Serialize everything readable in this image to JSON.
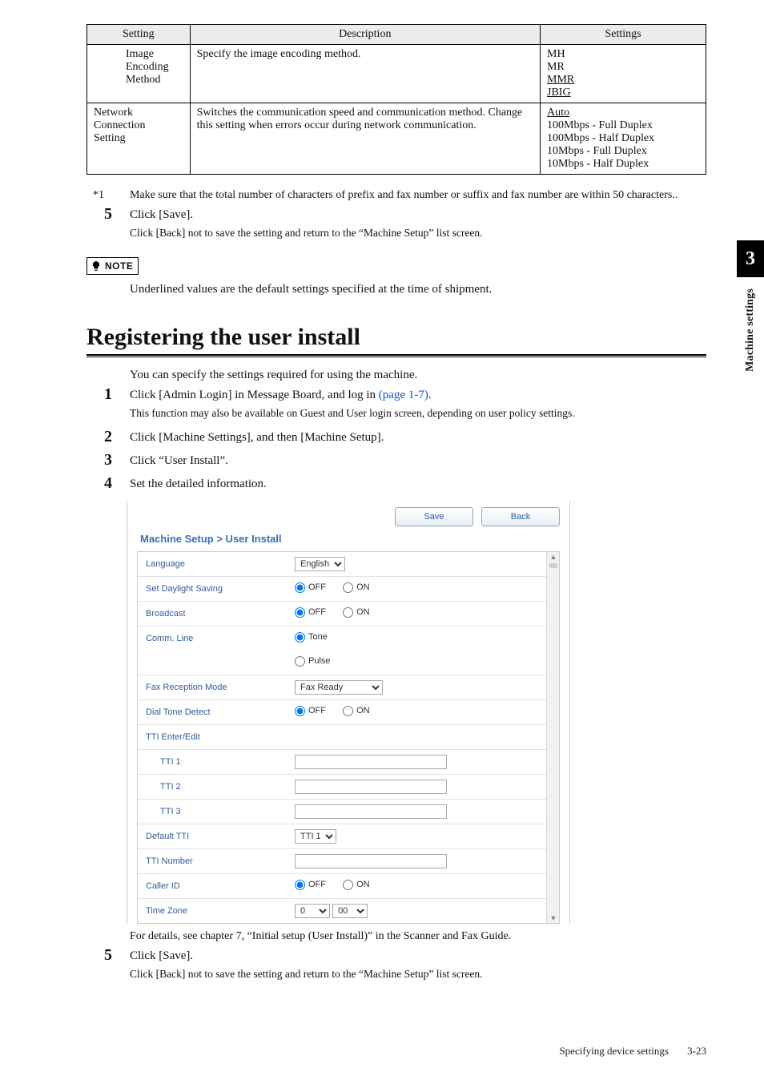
{
  "sideTab": {
    "chapterNum": "3",
    "chapterLabel": "Machine settings"
  },
  "table": {
    "headers": {
      "setting": "Setting",
      "description": "Description",
      "settings": "Settings"
    },
    "rows": [
      {
        "indented": true,
        "setting": "Image\nEncoding\nMethod",
        "description": "Specify the image encoding method.",
        "options": [
          {
            "text": "MH",
            "underline": false
          },
          {
            "text": "MR",
            "underline": false
          },
          {
            "text": "MMR",
            "underline": true
          },
          {
            "text": "JBIG",
            "underline": true
          }
        ]
      },
      {
        "indented": false,
        "setting": "Network\nConnection\nSetting",
        "description": "Switches the communication speed and communication method. Change this setting when errors occur during network communication.",
        "options": [
          {
            "text": "Auto",
            "underline": true
          },
          {
            "text": "100Mbps - Full Duplex",
            "underline": false
          },
          {
            "text": "100Mbps - Half Duplex",
            "underline": false
          },
          {
            "text": "10Mbps - Full Duplex",
            "underline": false
          },
          {
            "text": "10Mbps - Half Duplex",
            "underline": false
          }
        ]
      }
    ]
  },
  "footnote": {
    "mark": "*1",
    "text": "Make sure that the total number of characters of prefix and fax number or suffix and fax number are within 50 characters.."
  },
  "stepsA": {
    "5": {
      "body": "Click [Save].",
      "sub": "Click [Back] not to save the setting and return to the “Machine Setup” list screen."
    }
  },
  "note": {
    "label": "NOTE",
    "text": "Underlined values are the default settings specified at the time of shipment."
  },
  "sectionTitle": "Registering the user install",
  "sectionIntro": "You can specify the settings required for using the machine.",
  "stepsB": {
    "1": {
      "body_pre": "Click [Admin Login] in Message Board, and log in ",
      "body_link": "(page 1-7)",
      "body_post": ".",
      "sub": "This function may also be available on Guest and User login screen, depending on user policy settings."
    },
    "2": {
      "body": "Click [Machine Settings], and then [Machine Setup]."
    },
    "3": {
      "body": "Click “User Install”."
    },
    "4": {
      "body": "Set the detailed information."
    },
    "5": {
      "body": "Click [Save].",
      "sub": "Click [Back] not to save the setting and return to the “Machine Setup” list screen."
    }
  },
  "shot": {
    "buttons": {
      "save": "Save",
      "back": "Back"
    },
    "title": "Machine Setup > User Install",
    "rows": {
      "language": {
        "label": "Language",
        "value": "English"
      },
      "daylight": {
        "label": "Set Daylight Saving",
        "off": "OFF",
        "on": "ON"
      },
      "broadcast": {
        "label": "Broadcast",
        "off": "OFF",
        "on": "ON"
      },
      "commLine": {
        "label": "Comm. Line",
        "tone": "Tone",
        "pulse": "Pulse"
      },
      "faxMode": {
        "label": "Fax Reception Mode",
        "value": "Fax Ready"
      },
      "dialTone": {
        "label": "Dial Tone Detect",
        "off": "OFF",
        "on": "ON"
      },
      "ttiHdr": {
        "label": "TTI Enter/Edit"
      },
      "tti1": {
        "label": "TTI 1"
      },
      "tti2": {
        "label": "TTI 2"
      },
      "tti3": {
        "label": "TTI 3"
      },
      "defaultTti": {
        "label": "Default TTI",
        "value": "TTI 1"
      },
      "ttiNumber": {
        "label": "TTI Number"
      },
      "callerId": {
        "label": "Caller ID",
        "off": "OFF",
        "on": "ON"
      },
      "timeZone": {
        "label": "Time Zone",
        "v1": "0",
        "v2": "00"
      }
    }
  },
  "caption": "For details, see chapter 7, “Initial setup (User Install)” in the Scanner and Fax Guide.",
  "footer": {
    "section": "Specifying device settings",
    "page": "3-23"
  }
}
